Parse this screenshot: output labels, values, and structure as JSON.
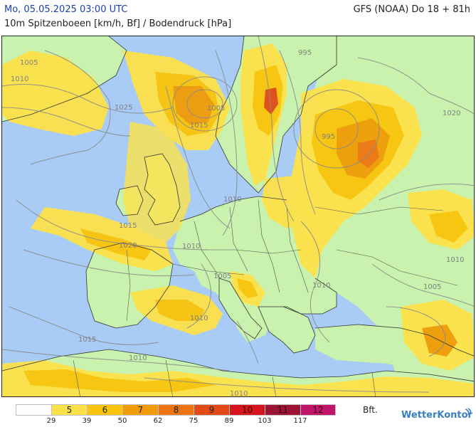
{
  "header": {
    "date": "Mo, 05.05.2025 03:00 UTC",
    "model": "GFS (NOAA) Do 18 + 81h",
    "subtitle": "10m Spitzenboeen [km/h, Bf] / Bodendruck [hPa]"
  },
  "colors": {
    "sea": "#a8ccf5",
    "land": "#c8f2ad",
    "bft5": "#fde24a",
    "bft6": "#fac40a",
    "bft7": "#f19b06",
    "bft8": "#ec7510",
    "bft9": "#e24a16",
    "bft10": "#d8141c",
    "bft11": "#9a1435",
    "bft12": "#c1146d"
  },
  "legend": {
    "unit": "Bft.",
    "classes": [
      {
        "label": "",
        "color": "#ffffff"
      },
      {
        "label": "5",
        "color": "#fde24a"
      },
      {
        "label": "6",
        "color": "#fac40a"
      },
      {
        "label": "7",
        "color": "#f19b06"
      },
      {
        "label": "8",
        "color": "#ec7510"
      },
      {
        "label": "9",
        "color": "#e24a16"
      },
      {
        "label": "10",
        "color": "#d8141c"
      },
      {
        "label": "11",
        "color": "#9a1435"
      },
      {
        "label": "12",
        "color": "#c1146d"
      }
    ],
    "ticks": [
      "29",
      "39",
      "50",
      "62",
      "75",
      "89",
      "103",
      "117"
    ]
  },
  "isobar_labels": [
    "1005",
    "1010",
    "1025",
    "995",
    "1020",
    "1015",
    "1005",
    "995",
    "1010",
    "1015",
    "1020",
    "1015",
    "1010",
    "1005",
    "1010",
    "1010",
    "1015",
    "1010",
    "1010",
    "1005",
    "1010"
  ],
  "logo": "WetterKontor"
}
